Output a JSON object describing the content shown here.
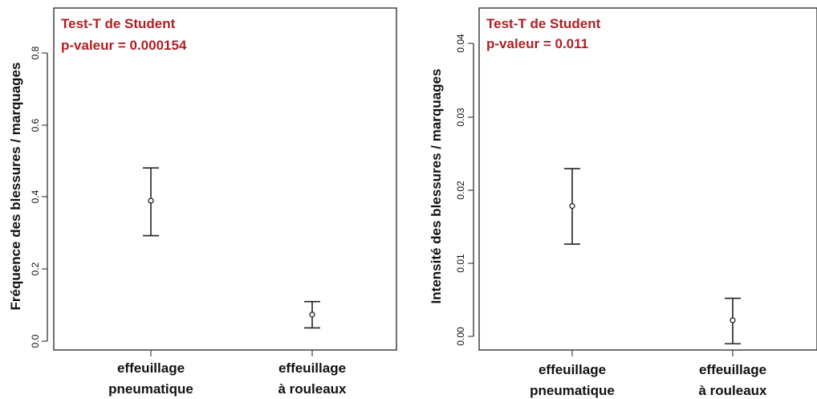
{
  "chart_data": [
    {
      "type": "scatter",
      "test_name": "Test-T de Student",
      "p_value_text": "p-valeur = 0.000154",
      "ylabel": "Fréquence des blessures / marquages",
      "xlabel": "",
      "categories": [
        [
          "effeuillage",
          "pneumatique"
        ],
        [
          "effeuillage",
          "à rouleaux"
        ]
      ],
      "points": [
        {
          "mean": 0.39,
          "lower": 0.293,
          "upper": 0.481
        },
        {
          "mean": 0.074,
          "lower": 0.037,
          "upper": 0.11
        }
      ],
      "yticks": [
        "0.0",
        "0.2",
        "0.4",
        "0.6",
        "0.8"
      ],
      "ytick_values": [
        0,
        0.2,
        0.4,
        0.6,
        0.8
      ],
      "ylim": [
        -0.02,
        0.92
      ],
      "grid": false,
      "annotation_color": "#b01e23"
    },
    {
      "type": "scatter",
      "test_name": "Test-T de Student",
      "p_value_text": "p-valeur = 0.011",
      "ylabel": "Intensité des blessures / marquages",
      "xlabel": "",
      "categories": [
        [
          "effeuillage",
          "pneumatique"
        ],
        [
          "effeuillage",
          "à rouleaux"
        ]
      ],
      "points": [
        {
          "mean": 0.0178,
          "lower": 0.0126,
          "upper": 0.0229
        },
        {
          "mean": 0.0022,
          "lower": -0.001,
          "upper": 0.0052
        }
      ],
      "yticks": [
        "0.00",
        "0.01",
        "0.02",
        "0.03",
        "0.04"
      ],
      "ytick_values": [
        0,
        0.01,
        0.02,
        0.03,
        0.04
      ],
      "ylim": [
        -0.0015,
        0.0445
      ],
      "grid": false,
      "annotation_color": "#b01e23"
    }
  ]
}
